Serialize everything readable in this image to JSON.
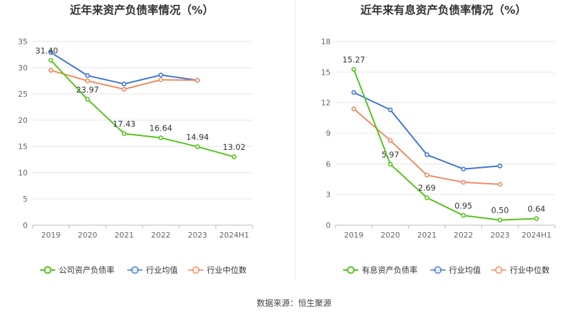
{
  "chart_data": [
    {
      "type": "line",
      "title": "近年来资产负债率情况（%）",
      "categories": [
        "2019",
        "2020",
        "2021",
        "2022",
        "2023",
        "2024H1"
      ],
      "ylim": [
        0,
        35
      ],
      "yticks": [
        0,
        5,
        10,
        15,
        20,
        25,
        30,
        35
      ],
      "grid": true,
      "legend_position": "bottom",
      "series": [
        {
          "name": "公司资产负债率",
          "color": "#52c41a",
          "values": [
            31.4,
            23.97,
            17.43,
            16.64,
            14.94,
            13.02
          ],
          "data_labels": [
            "31.40",
            "23.97",
            "17.43",
            "16.64",
            "14.94",
            "13.02"
          ]
        },
        {
          "name": "行业均值",
          "color": "#3b73d8",
          "values": [
            32.9,
            28.5,
            26.9,
            28.6,
            27.6,
            null
          ],
          "data_labels": []
        },
        {
          "name": "行业中位数",
          "color": "#f08a5d",
          "values": [
            29.5,
            27.5,
            25.9,
            27.7,
            27.6,
            null
          ],
          "data_labels": []
        }
      ]
    },
    {
      "type": "line",
      "title": "近年来有息资产负债率情况（%）",
      "categories": [
        "2019",
        "2020",
        "2021",
        "2022",
        "2023",
        "2024H1"
      ],
      "ylim": [
        0,
        18
      ],
      "yticks": [
        0,
        3,
        6,
        9,
        12,
        15,
        18
      ],
      "grid": true,
      "legend_position": "bottom",
      "series": [
        {
          "name": "有息资产负债率",
          "color": "#52c41a",
          "values": [
            15.27,
            5.97,
            2.69,
            0.95,
            0.5,
            0.64
          ],
          "data_labels": [
            "15.27",
            "5.97",
            "2.69",
            "0.95",
            "0.50",
            "0.64"
          ]
        },
        {
          "name": "行业均值",
          "color": "#3b73d8",
          "values": [
            13.0,
            11.3,
            6.9,
            5.5,
            5.8,
            null
          ],
          "data_labels": []
        },
        {
          "name": "行业中位数",
          "color": "#f08a5d",
          "values": [
            11.4,
            8.3,
            4.9,
            4.2,
            4.0,
            null
          ],
          "data_labels": []
        }
      ]
    }
  ],
  "footer": {
    "source": "数据来源：恒生聚源"
  }
}
